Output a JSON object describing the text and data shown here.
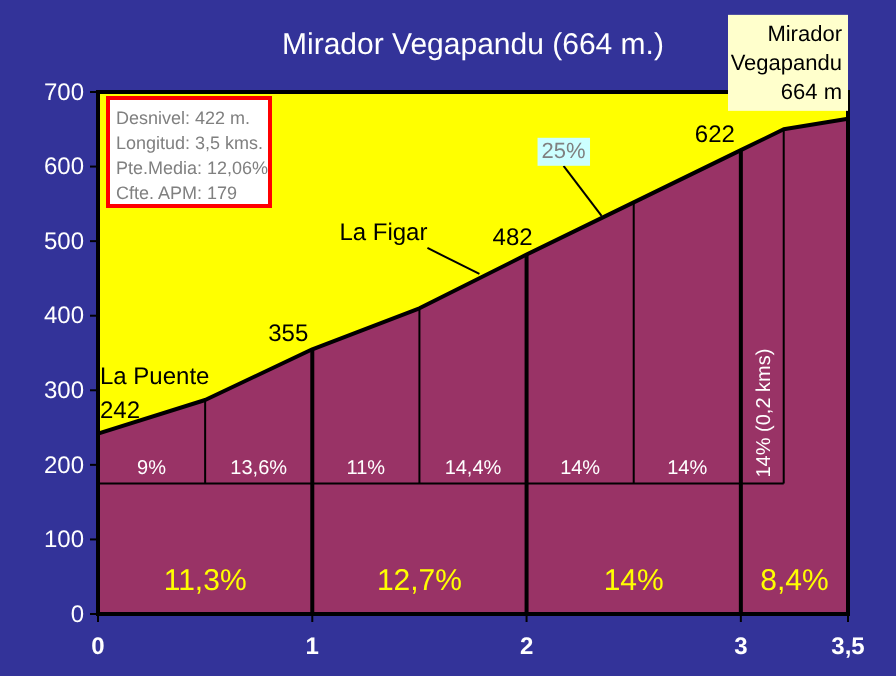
{
  "chart_data": {
    "type": "area",
    "title": "Mirador Vegapandu (664 m.)",
    "x": [
      0,
      0.5,
      1,
      1.5,
      2,
      2.5,
      3,
      3.2,
      3.5
    ],
    "series": [
      {
        "color": "#993366",
        "values": [
          242,
          287,
          355,
          410,
          482,
          552,
          622,
          650,
          664
        ]
      }
    ],
    "xlim": [
      0,
      3.5
    ],
    "xticks": [
      0,
      1,
      2,
      3,
      {
        "value": 3.5,
        "label": "3,5"
      }
    ],
    "ylim": [
      0,
      700
    ],
    "yticks": [
      0,
      100,
      200,
      300,
      400,
      500,
      600,
      700
    ],
    "grid": false,
    "ref_lines": [
      {
        "axis": "y",
        "value": 175
      },
      {
        "axis": "x",
        "value": 0.5
      },
      {
        "axis": "x",
        "value": 1
      },
      {
        "axis": "x",
        "value": 1.5
      },
      {
        "axis": "x",
        "value": 2
      },
      {
        "axis": "x",
        "value": 2.5
      },
      {
        "axis": "x",
        "value": 3
      },
      {
        "axis": "x",
        "value": 3.2
      }
    ],
    "annotations": [
      {
        "text": "La Puente",
        "x": 0,
        "y": 242
      },
      {
        "text": "242",
        "x": 0,
        "y": 242
      },
      {
        "text": "355",
        "x": 1,
        "y": 355
      },
      {
        "text": "La Figar",
        "x": 1.78,
        "y": 456
      },
      {
        "text": "482",
        "x": 2,
        "y": 482
      },
      {
        "text": "25%",
        "x": 2.35,
        "y": 534
      },
      {
        "text": "622",
        "x": 3,
        "y": 622
      },
      {
        "text": "Mirador\nVegapandu\n664 m",
        "x": 3.5,
        "y": 664
      },
      "Desnivel:  422 m.\nLongitud: 3,5 kms.\nPte.Media: 12,06%\nCfte. APM: 179",
      {
        "text": "9%",
        "x": 0.25,
        "y": 175
      },
      {
        "text": "13,6%",
        "x": 0.75,
        "y": 175
      },
      {
        "text": "11%",
        "x": 1.25,
        "y": 175
      },
      {
        "text": "14,4%",
        "x": 1.75,
        "y": 175
      },
      {
        "text": "14%",
        "x": 2.25,
        "y": 175
      },
      {
        "text": "14%",
        "x": 2.75,
        "y": 175
      },
      {
        "text": "14% (0,2 kms)",
        "x": 3.1,
        "y": 175
      },
      {
        "text": "11,3%",
        "x": 0.5,
        "y": 0
      },
      {
        "text": "12,7%",
        "x": 1.5,
        "y": 0
      },
      {
        "text": "14%",
        "x": 2.5,
        "y": 0
      },
      {
        "text": "8,4%",
        "x": 3.25,
        "y": 0
      }
    ]
  }
}
